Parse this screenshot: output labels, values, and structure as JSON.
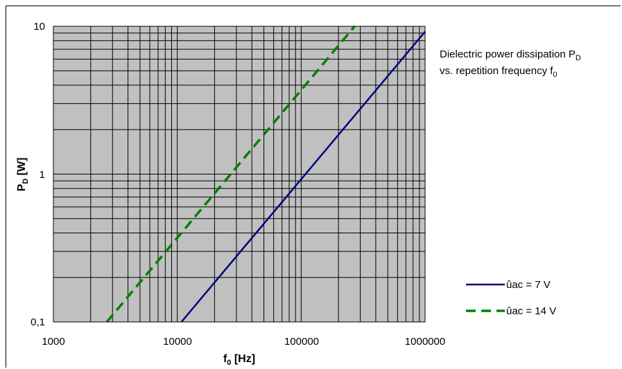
{
  "chart_data": {
    "type": "line",
    "x_scale": "log",
    "y_scale": "log",
    "xlim": [
      1000,
      1000000
    ],
    "ylim": [
      0.1,
      10
    ],
    "x_tick_labels": [
      "1000",
      "10000",
      "100000",
      "1000000"
    ],
    "y_tick_labels": [
      "0,1",
      "1",
      "10"
    ],
    "xlabel": {
      "main": "f",
      "sub": "0",
      "rest": " [Hz]"
    },
    "ylabel": {
      "main": "P",
      "sub": "D",
      "rest": " [W]"
    },
    "caption": {
      "line1_main": "Dielectric power dissipation P",
      "line1_sub": "D",
      "line2_main": "vs. repetition frequency f",
      "line2_sub": "0"
    },
    "grid": true,
    "plot_background": "#c0c0c0",
    "legend_position": "right",
    "series": [
      {
        "name": "ûac = 7 V",
        "color": "#000080",
        "dash": "solid",
        "x": [
          10800,
          1000000
        ],
        "y": [
          0.1,
          9.2
        ]
      },
      {
        "name": "ûac = 14 V",
        "color": "#008000",
        "dash": "dashed",
        "x": [
          2700,
          270000
        ],
        "y": [
          0.1,
          10
        ]
      }
    ]
  }
}
